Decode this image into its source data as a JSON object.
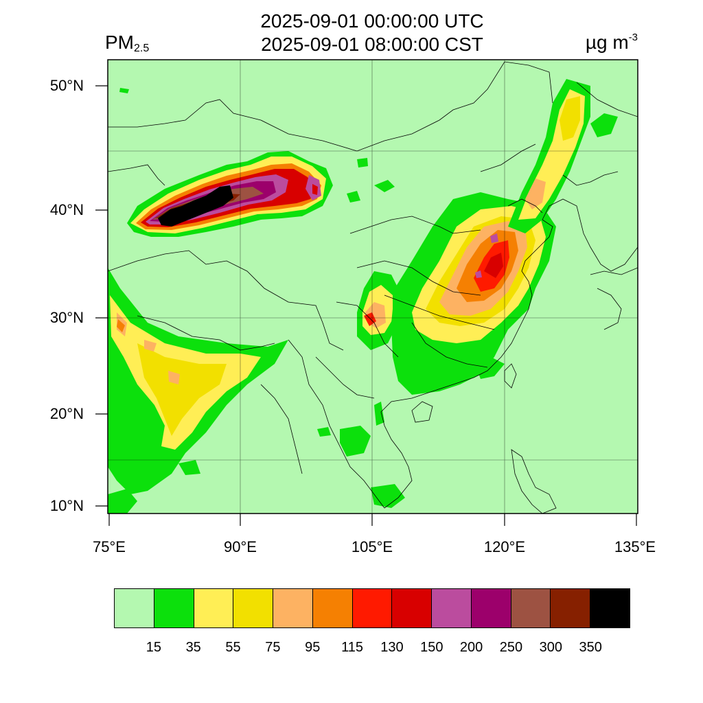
{
  "title": {
    "utc": "2025-09-01 00:00:00 UTC",
    "cst": "2025-09-01 08:00:00 CST"
  },
  "variable": {
    "main": "PM",
    "sub": "2.5"
  },
  "unit": {
    "main": "µg m",
    "sup": "-3"
  },
  "axes": {
    "lat_labels": [
      "50°N",
      "40°N",
      "30°N",
      "20°N",
      "10°N"
    ],
    "lon_labels": [
      "75°E",
      "90°E",
      "105°E",
      "120°E",
      "135°E"
    ]
  },
  "legend": {
    "colors": [
      "#b4f8b0",
      "#0ce00c",
      "#ffee55",
      "#f2e000",
      "#fdb262",
      "#f58002",
      "#ff1a00",
      "#d80000",
      "#bb4c9e",
      "#9c006b",
      "#9d5242",
      "#862000",
      "#000000"
    ],
    "labels": [
      "15",
      "35",
      "55",
      "75",
      "95",
      "115",
      "130",
      "150",
      "200",
      "250",
      "300",
      "350"
    ]
  },
  "map": {
    "background_color": "#b4f8b0",
    "features": [
      "pm25-plume-tarim-basin",
      "pm25-plume-north-china-plain",
      "pm25-plume-northeast-china",
      "pm25-plume-sichuan-basin",
      "pm25-plume-indo-gangetic-plain"
    ]
  }
}
